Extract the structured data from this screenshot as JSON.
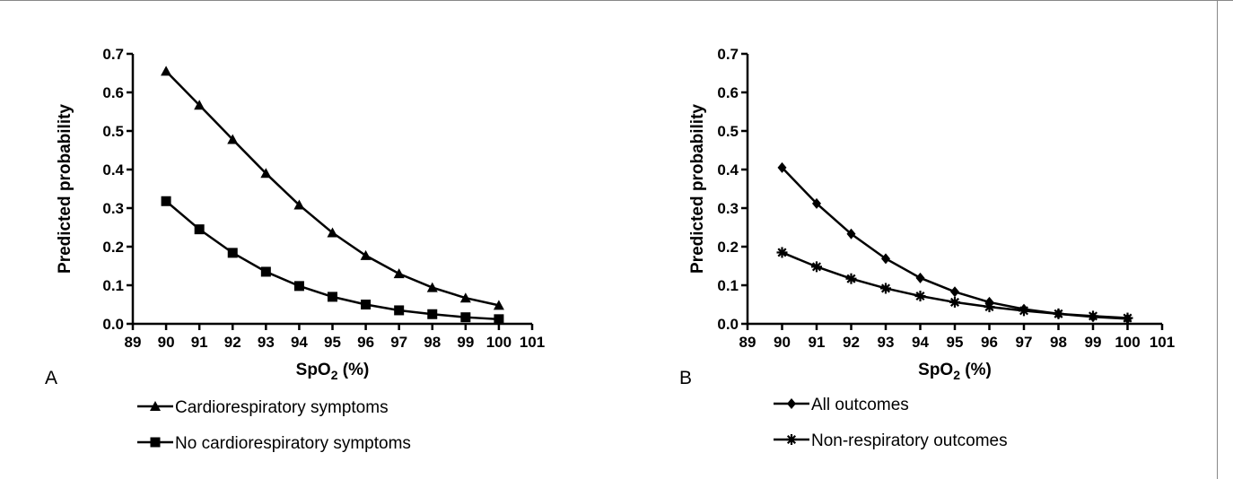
{
  "chart_data": [
    {
      "type": "line",
      "panel_label": "A",
      "xlabel": "SpO",
      "xlabel_subscript": "2",
      "xlabel_suffix": " (%)",
      "ylabel": "Predicted probability",
      "xlim": [
        89,
        101
      ],
      "ylim": [
        0.0,
        0.7
      ],
      "x_ticks": [
        89,
        90,
        91,
        92,
        93,
        94,
        95,
        96,
        97,
        98,
        99,
        100,
        101
      ],
      "y_ticks": [
        0.0,
        0.1,
        0.2,
        0.3,
        0.4,
        0.5,
        0.6,
        0.7
      ],
      "y_tick_labels": [
        "0.0",
        "0.1",
        "0.2",
        "0.3",
        "0.4",
        "0.5",
        "0.6",
        "0.7"
      ],
      "x": [
        90,
        91,
        92,
        93,
        94,
        95,
        96,
        97,
        98,
        99,
        100
      ],
      "series": [
        {
          "name": "Cardiorespiratory symptoms",
          "marker": "triangle",
          "values": [
            0.655,
            0.567,
            0.478,
            0.39,
            0.308,
            0.236,
            0.177,
            0.13,
            0.094,
            0.067,
            0.048
          ]
        },
        {
          "name": "No cardiorespiratory symptoms",
          "marker": "square",
          "values": [
            0.318,
            0.245,
            0.184,
            0.135,
            0.098,
            0.07,
            0.05,
            0.035,
            0.025,
            0.017,
            0.012
          ]
        }
      ],
      "legend_position": "below"
    },
    {
      "type": "line",
      "panel_label": "B",
      "xlabel": "SpO",
      "xlabel_subscript": "2",
      "xlabel_suffix": " (%)",
      "ylabel": "Predicted probability",
      "xlim": [
        89,
        101
      ],
      "ylim": [
        0.0,
        0.7
      ],
      "x_ticks": [
        89,
        90,
        91,
        92,
        93,
        94,
        95,
        96,
        97,
        98,
        99,
        100,
        101
      ],
      "y_ticks": [
        0.0,
        0.1,
        0.2,
        0.3,
        0.4,
        0.5,
        0.6,
        0.7
      ],
      "y_tick_labels": [
        "0.0",
        "0.1",
        "0.2",
        "0.3",
        "0.4",
        "0.5",
        "0.6",
        "0.7"
      ],
      "x": [
        90,
        91,
        92,
        93,
        94,
        95,
        96,
        97,
        98,
        99,
        100
      ],
      "series": [
        {
          "name": "All outcomes",
          "marker": "diamond",
          "values": [
            0.405,
            0.312,
            0.233,
            0.169,
            0.119,
            0.083,
            0.056,
            0.038,
            0.026,
            0.018,
            0.013
          ]
        },
        {
          "name": "Non-respiratory outcomes",
          "marker": "asterisk",
          "values": [
            0.185,
            0.148,
            0.117,
            0.092,
            0.072,
            0.056,
            0.044,
            0.034,
            0.026,
            0.02,
            0.015
          ]
        }
      ],
      "legend_position": "below"
    }
  ],
  "colors": {
    "line": "#000000",
    "frame": "#888888",
    "background": "#ffffff"
  }
}
